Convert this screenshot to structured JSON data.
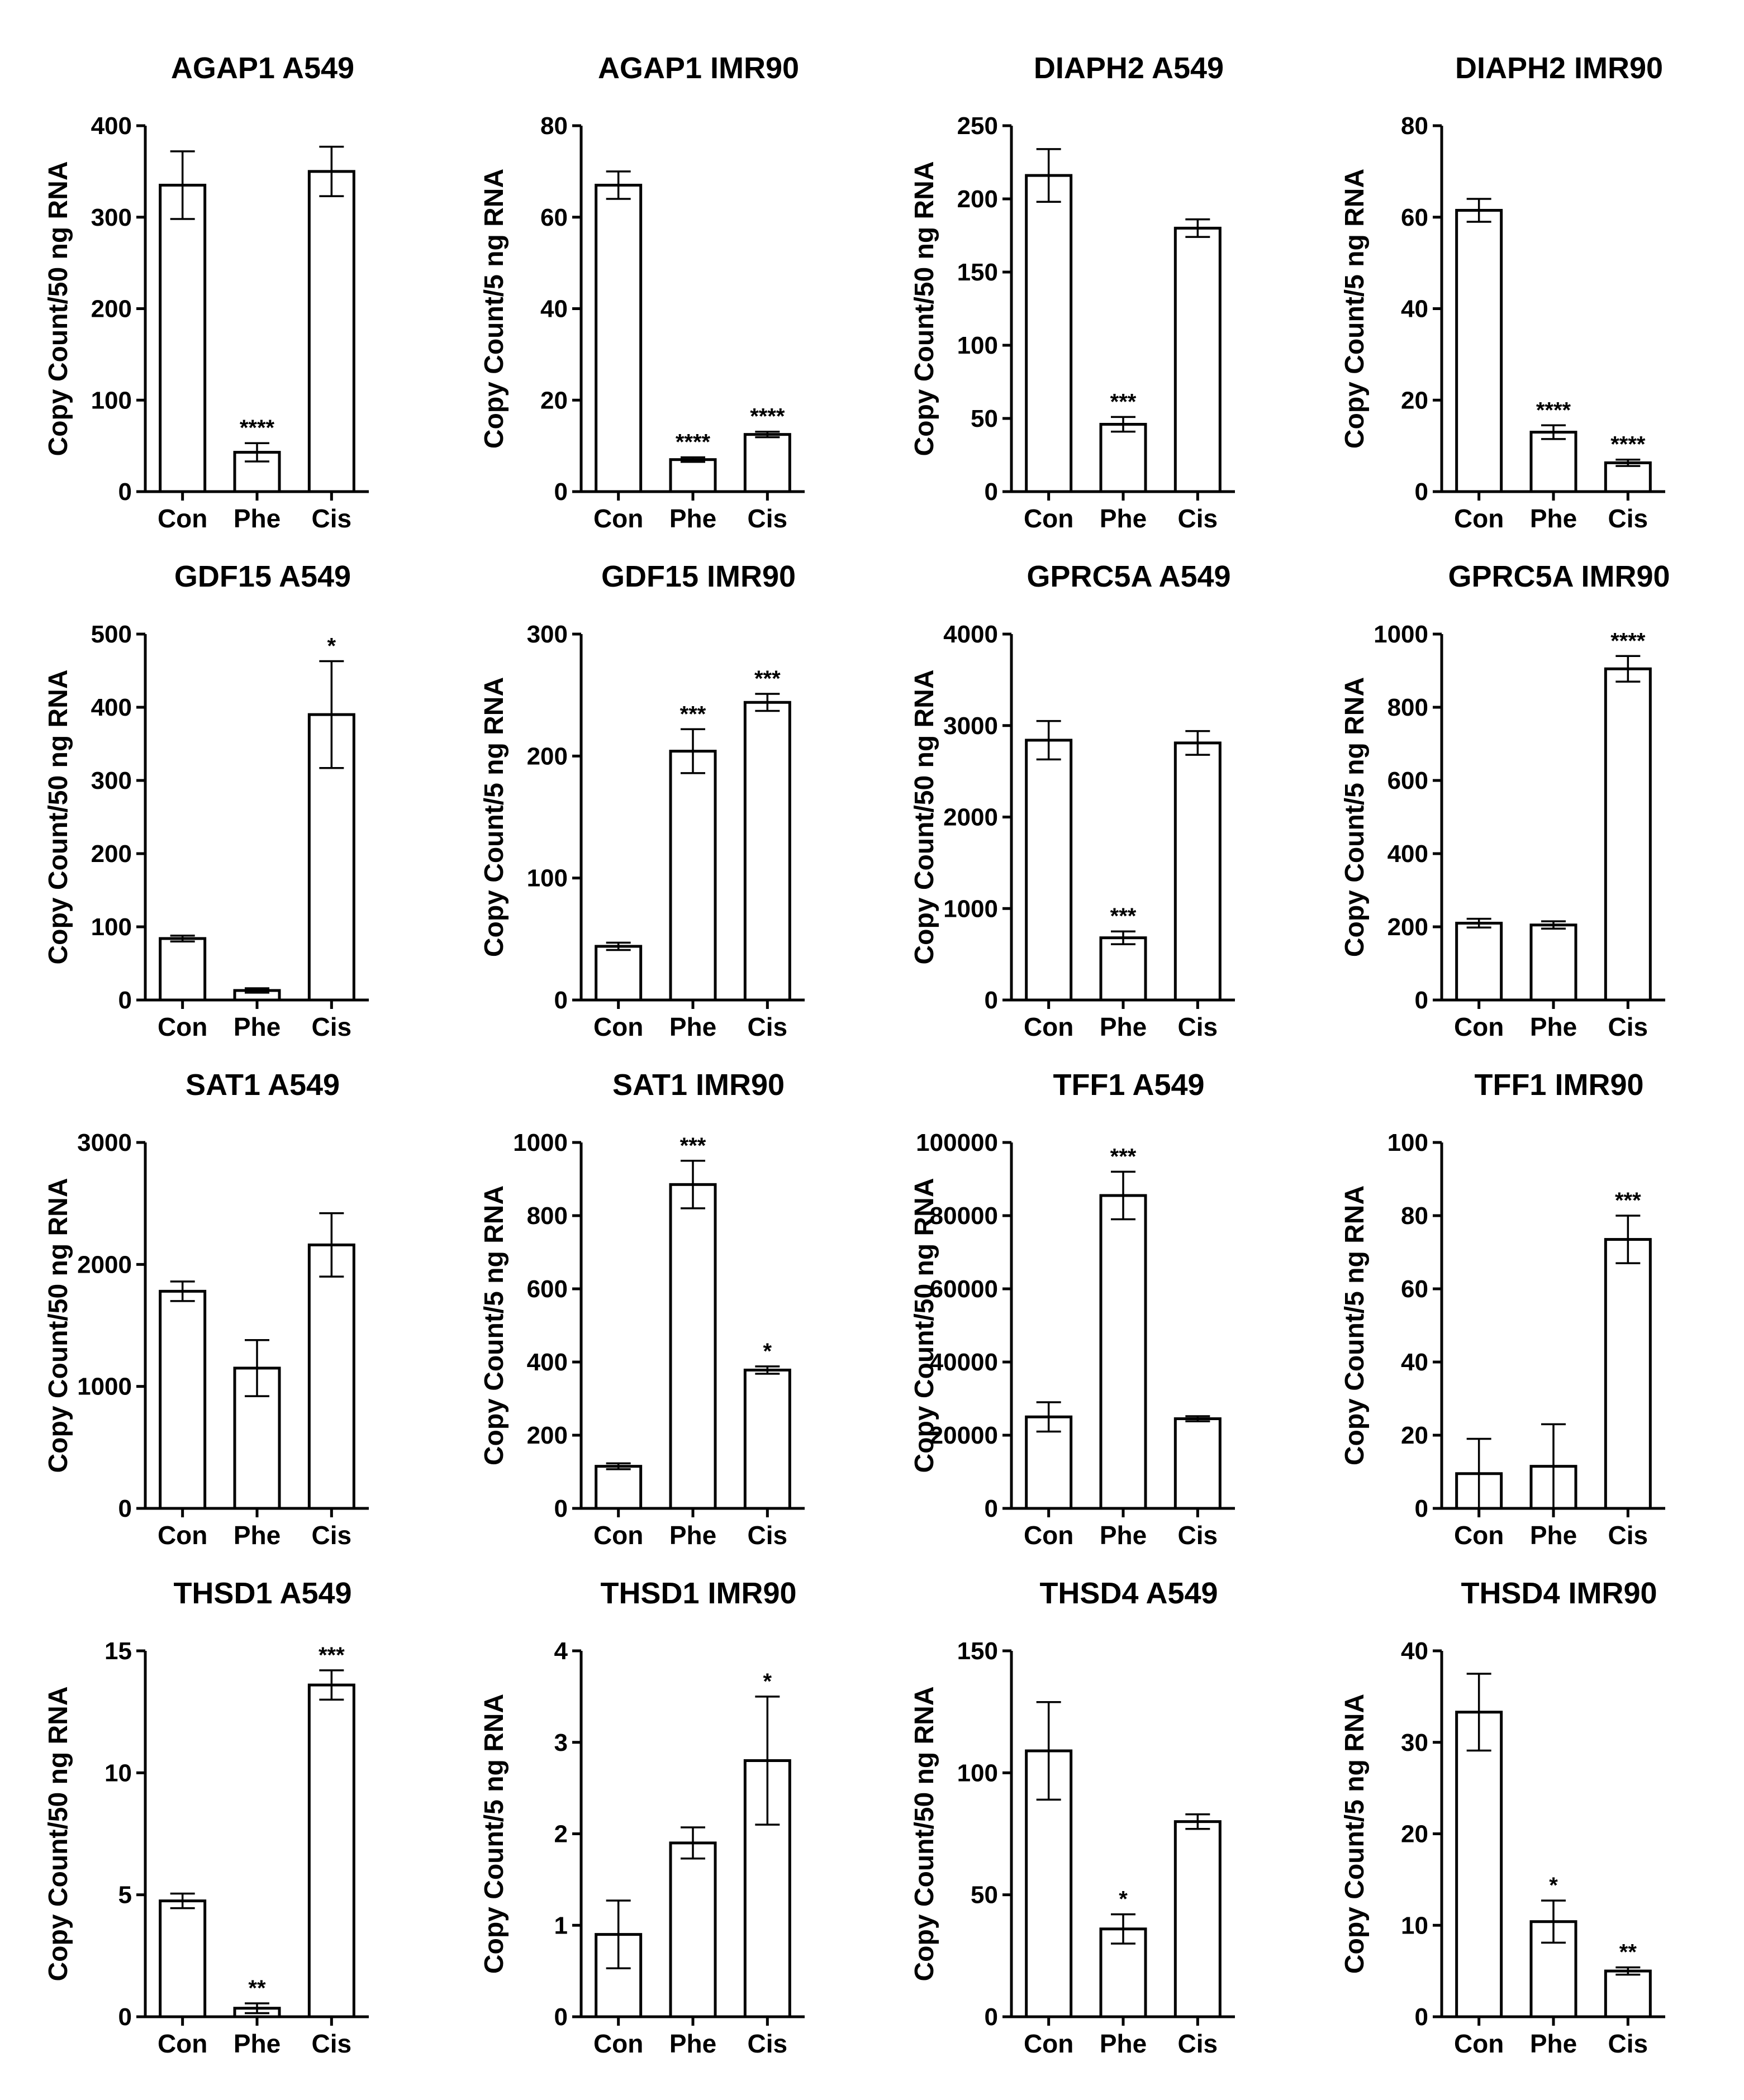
{
  "chart_data": [
    {
      "type": "bar",
      "title": "AGAP1 A549",
      "ylabel": "Copy Count/50 ng RNA",
      "categories": [
        "Con",
        "Phe",
        "Cis"
      ],
      "values": [
        335,
        43,
        350
      ],
      "errors": [
        37,
        10,
        27
      ],
      "significance": [
        "",
        "****",
        ""
      ],
      "ylim": [
        0,
        400
      ],
      "yticks": [
        "0",
        "100",
        "200",
        "300",
        "400"
      ]
    },
    {
      "type": "bar",
      "title": "AGAP1 IMR90",
      "ylabel": "Copy Count/5 ng RNA",
      "categories": [
        "Con",
        "Phe",
        "Cis"
      ],
      "values": [
        67,
        7,
        12.5
      ],
      "errors": [
        3,
        0.5,
        0.6
      ],
      "significance": [
        "",
        "****",
        "****"
      ],
      "ylim": [
        0,
        80
      ],
      "yticks": [
        "0",
        "20",
        "40",
        "60",
        "80"
      ]
    },
    {
      "type": "bar",
      "title": "DIAPH2 A549",
      "ylabel": "Copy Count/50 ng RNA",
      "categories": [
        "Con",
        "Phe",
        "Cis"
      ],
      "values": [
        216,
        46,
        180
      ],
      "errors": [
        18,
        5,
        6
      ],
      "significance": [
        "",
        "***",
        ""
      ],
      "ylim": [
        0,
        250
      ],
      "yticks": [
        "0",
        "50",
        "100",
        "150",
        "200",
        "250"
      ]
    },
    {
      "type": "bar",
      "title": "DIAPH2 IMR90",
      "ylabel": "Copy Count/5 ng RNA",
      "categories": [
        "Con",
        "Phe",
        "Cis"
      ],
      "values": [
        61.5,
        13,
        6.3
      ],
      "errors": [
        2.5,
        1.5,
        0.7
      ],
      "significance": [
        "",
        "****",
        "****"
      ],
      "ylim": [
        0,
        80
      ],
      "yticks": [
        "0",
        "20",
        "40",
        "60",
        "80"
      ]
    },
    {
      "type": "bar",
      "title": "GDF15 A549",
      "ylabel": "Copy Count/50 ng RNA",
      "categories": [
        "Con",
        "Phe",
        "Cis"
      ],
      "values": [
        84,
        13,
        390
      ],
      "errors": [
        4,
        3,
        73
      ],
      "significance": [
        "",
        "",
        "*"
      ],
      "ylim": [
        0,
        500
      ],
      "yticks": [
        "0",
        "100",
        "200",
        "300",
        "400",
        "500"
      ]
    },
    {
      "type": "bar",
      "title": "GDF15 IMR90",
      "ylabel": "Copy Count/5 ng RNA",
      "categories": [
        "Con",
        "Phe",
        "Cis"
      ],
      "values": [
        44,
        204,
        244
      ],
      "errors": [
        3,
        18,
        7
      ],
      "significance": [
        "",
        "***",
        "***"
      ],
      "ylim": [
        0,
        300
      ],
      "yticks": [
        "0",
        "100",
        "200",
        "300"
      ]
    },
    {
      "type": "bar",
      "title": "GPRC5A A549",
      "ylabel": "Copy Count/50 ng RNA",
      "categories": [
        "Con",
        "Phe",
        "Cis"
      ],
      "values": [
        2840,
        680,
        2810
      ],
      "errors": [
        210,
        70,
        130
      ],
      "significance": [
        "",
        "***",
        ""
      ],
      "ylim": [
        0,
        4000
      ],
      "yticks": [
        "0",
        "1000",
        "2000",
        "3000",
        "4000"
      ]
    },
    {
      "type": "bar",
      "title": "GPRC5A IMR90",
      "ylabel": "Copy Count/5 ng RNA",
      "categories": [
        "Con",
        "Phe",
        "Cis"
      ],
      "values": [
        210,
        205,
        905
      ],
      "errors": [
        12,
        10,
        35
      ],
      "significance": [
        "",
        "",
        "****"
      ],
      "ylim": [
        0,
        1000
      ],
      "yticks": [
        "0",
        "200",
        "400",
        "600",
        "800",
        "1000"
      ]
    },
    {
      "type": "bar",
      "title": "SAT1 A549",
      "ylabel": "Copy Count/50 ng RNA",
      "categories": [
        "Con",
        "Phe",
        "Cis"
      ],
      "values": [
        1780,
        1150,
        2160
      ],
      "errors": [
        80,
        230,
        260
      ],
      "significance": [
        "",
        "",
        ""
      ],
      "ylim": [
        0,
        3000
      ],
      "yticks": [
        "0",
        "1000",
        "2000",
        "3000"
      ]
    },
    {
      "type": "bar",
      "title": "SAT1 IMR90",
      "ylabel": "Copy Count/5 ng RNA",
      "categories": [
        "Con",
        "Phe",
        "Cis"
      ],
      "values": [
        115,
        885,
        378
      ],
      "errors": [
        8,
        65,
        10
      ],
      "significance": [
        "",
        "***",
        "*"
      ],
      "ylim": [
        0,
        1000
      ],
      "yticks": [
        "0",
        "200",
        "400",
        "600",
        "800",
        "1000"
      ]
    },
    {
      "type": "bar",
      "title": "TFF1 A549",
      "ylabel": "Copy Count/50 ng RNA",
      "categories": [
        "Con",
        "Phe",
        "Cis"
      ],
      "values": [
        25000,
        85500,
        24500
      ],
      "errors": [
        4000,
        6500,
        700
      ],
      "significance": [
        "",
        "***",
        ""
      ],
      "ylim": [
        0,
        100000
      ],
      "yticks": [
        "0",
        "20000",
        "40000",
        "60000",
        "80000",
        "100000"
      ]
    },
    {
      "type": "bar",
      "title": "TFF1 IMR90",
      "ylabel": "Copy Count/5 ng RNA",
      "categories": [
        "Con",
        "Phe",
        "Cis"
      ],
      "values": [
        9.5,
        11.5,
        73.5
      ],
      "errors": [
        9.5,
        11.5,
        6.5
      ],
      "significance": [
        "",
        "",
        "***"
      ],
      "ylim": [
        0,
        100
      ],
      "yticks": [
        "0",
        "20",
        "40",
        "60",
        "80",
        "100"
      ]
    },
    {
      "type": "bar",
      "title": "THSD1 A549",
      "ylabel": "Copy Count/50 ng RNA",
      "categories": [
        "Con",
        "Phe",
        "Cis"
      ],
      "values": [
        4.75,
        0.35,
        13.6
      ],
      "errors": [
        0.3,
        0.2,
        0.6
      ],
      "significance": [
        "",
        "**",
        "***"
      ],
      "ylim": [
        0,
        15
      ],
      "yticks": [
        "0",
        "5",
        "10",
        "15"
      ]
    },
    {
      "type": "bar",
      "title": "THSD1 IMR90",
      "ylabel": "Copy Count/5 ng RNA",
      "categories": [
        "Con",
        "Phe",
        "Cis"
      ],
      "values": [
        0.9,
        1.9,
        2.8
      ],
      "errors": [
        0.37,
        0.17,
        0.7
      ],
      "significance": [
        "",
        "",
        "*"
      ],
      "ylim": [
        0,
        4
      ],
      "yticks": [
        "0",
        "1",
        "2",
        "3",
        "4"
      ]
    },
    {
      "type": "bar",
      "title": "THSD4 A549",
      "ylabel": "Copy Count/50 ng RNA",
      "categories": [
        "Con",
        "Phe",
        "Cis"
      ],
      "values": [
        109,
        36,
        80
      ],
      "errors": [
        20,
        6,
        3
      ],
      "significance": [
        "",
        "*",
        ""
      ],
      "ylim": [
        0,
        150
      ],
      "yticks": [
        "0",
        "50",
        "100",
        "150"
      ]
    },
    {
      "type": "bar",
      "title": "THSD4 IMR90",
      "ylabel": "Copy Count/5 ng RNA",
      "categories": [
        "Con",
        "Phe",
        "Cis"
      ],
      "values": [
        33.3,
        10.4,
        5
      ],
      "errors": [
        4.2,
        2.3,
        0.4
      ],
      "significance": [
        "",
        "*",
        "**"
      ],
      "ylim": [
        0,
        40
      ],
      "yticks": [
        "0",
        "10",
        "20",
        "30",
        "40"
      ]
    }
  ]
}
